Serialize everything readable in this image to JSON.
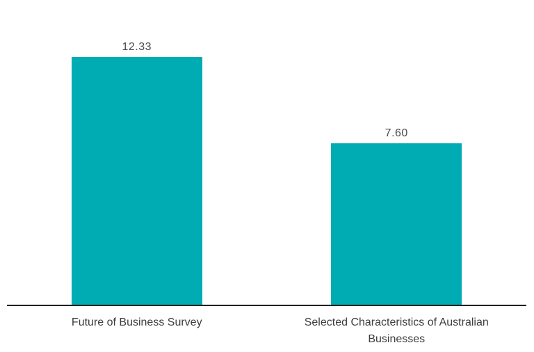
{
  "chart_data": {
    "type": "bar",
    "categories": [
      "Future of Business Survey",
      "Selected Characteristics of Australian Businesses"
    ],
    "values": [
      12.33,
      7.6
    ],
    "value_labels": [
      "12.33",
      "7.60"
    ],
    "title": "",
    "xlabel": "",
    "ylabel": "",
    "ylim": [
      0,
      12.33
    ],
    "grid": false,
    "legend": false,
    "bar_color": "#00ACB4",
    "axis_line_color": "#1f1f1f",
    "text_color": "#3d3d3d"
  }
}
